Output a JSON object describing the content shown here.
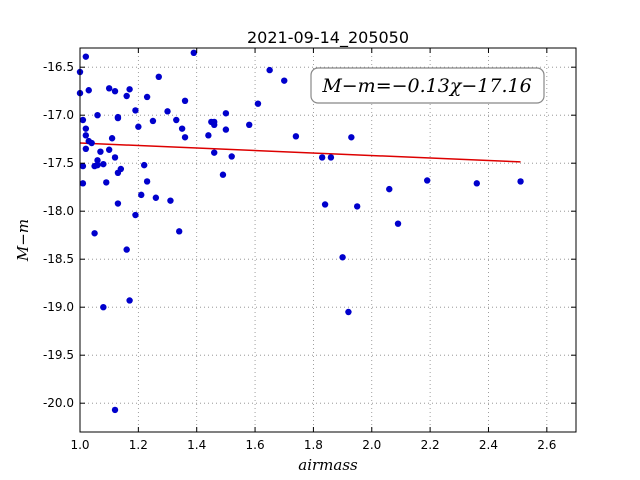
{
  "chart_data": {
    "type": "scatter",
    "title": "2021-09-14_205050",
    "xlabel": "airmass",
    "ylabel": "M−m",
    "xlim": [
      1.0,
      2.7
    ],
    "ylim": [
      -20.3,
      -16.3
    ],
    "y_inverted": true,
    "grid": true,
    "xticks": [
      "1.0",
      "1.2",
      "1.4",
      "1.6",
      "1.8",
      "2.0",
      "2.2",
      "2.4",
      "2.6"
    ],
    "yticks": [
      "-16.5",
      "-17.0",
      "-17.5",
      "-18.0",
      "-18.5",
      "-19.0",
      "-19.5",
      "-20.0"
    ],
    "annotation": "M−m=−0.13χ−17.16",
    "colors": {
      "points": "#0000cc",
      "fit": "#dd0000",
      "grid": "#888888"
    },
    "fit": {
      "slope": -0.13,
      "intercept": -17.16,
      "x_range": [
        1.0,
        2.51
      ]
    },
    "points": [
      [
        1.0,
        -16.55
      ],
      [
        1.0,
        -16.77
      ],
      [
        1.01,
        -17.05
      ],
      [
        1.01,
        -17.53
      ],
      [
        1.01,
        -17.71
      ],
      [
        1.02,
        -16.39
      ],
      [
        1.02,
        -17.14
      ],
      [
        1.02,
        -17.21
      ],
      [
        1.02,
        -17.35
      ],
      [
        1.03,
        -16.74
      ],
      [
        1.03,
        -17.27
      ],
      [
        1.04,
        -17.29
      ],
      [
        1.05,
        -18.23
      ],
      [
        1.05,
        -17.53
      ],
      [
        1.06,
        -17.0
      ],
      [
        1.06,
        -17.47
      ],
      [
        1.06,
        -17.52
      ],
      [
        1.07,
        -17.38
      ],
      [
        1.08,
        -17.51
      ],
      [
        1.08,
        -19.0
      ],
      [
        1.09,
        -17.7
      ],
      [
        1.1,
        -17.36
      ],
      [
        1.1,
        -16.72
      ],
      [
        1.11,
        -17.24
      ],
      [
        1.12,
        -17.44
      ],
      [
        1.12,
        -16.75
      ],
      [
        1.13,
        -17.03
      ],
      [
        1.13,
        -17.02
      ],
      [
        1.13,
        -17.6
      ],
      [
        1.13,
        -17.92
      ],
      [
        1.14,
        -17.56
      ],
      [
        1.12,
        -20.07
      ],
      [
        1.16,
        -16.8
      ],
      [
        1.16,
        -18.4
      ],
      [
        1.17,
        -18.93
      ],
      [
        1.17,
        -16.73
      ],
      [
        1.19,
        -16.95
      ],
      [
        1.19,
        -18.04
      ],
      [
        1.2,
        -17.12
      ],
      [
        1.21,
        -17.83
      ],
      [
        1.22,
        -17.52
      ],
      [
        1.23,
        -16.81
      ],
      [
        1.23,
        -17.69
      ],
      [
        1.25,
        -17.06
      ],
      [
        1.26,
        -17.86
      ],
      [
        1.27,
        -16.6
      ],
      [
        1.3,
        -16.96
      ],
      [
        1.31,
        -17.89
      ],
      [
        1.33,
        -17.05
      ],
      [
        1.34,
        -18.21
      ],
      [
        1.35,
        -17.14
      ],
      [
        1.36,
        -16.85
      ],
      [
        1.36,
        -17.23
      ],
      [
        1.39,
        -16.35
      ],
      [
        1.44,
        -17.21
      ],
      [
        1.45,
        -17.07
      ],
      [
        1.46,
        -17.07
      ],
      [
        1.46,
        -17.1
      ],
      [
        1.46,
        -17.39
      ],
      [
        1.49,
        -17.62
      ],
      [
        1.5,
        -16.98
      ],
      [
        1.5,
        -17.15
      ],
      [
        1.52,
        -17.43
      ],
      [
        1.58,
        -17.1
      ],
      [
        1.61,
        -16.88
      ],
      [
        1.65,
        -16.53
      ],
      [
        1.7,
        -16.64
      ],
      [
        1.74,
        -17.22
      ],
      [
        1.83,
        -17.44
      ],
      [
        1.84,
        -17.93
      ],
      [
        1.86,
        -17.44
      ],
      [
        1.9,
        -18.48
      ],
      [
        1.92,
        -19.05
      ],
      [
        1.93,
        -17.23
      ],
      [
        1.95,
        -17.95
      ],
      [
        2.06,
        -17.77
      ],
      [
        2.09,
        -18.13
      ],
      [
        2.19,
        -17.68
      ],
      [
        2.36,
        -17.71
      ],
      [
        2.51,
        -17.69
      ]
    ]
  }
}
